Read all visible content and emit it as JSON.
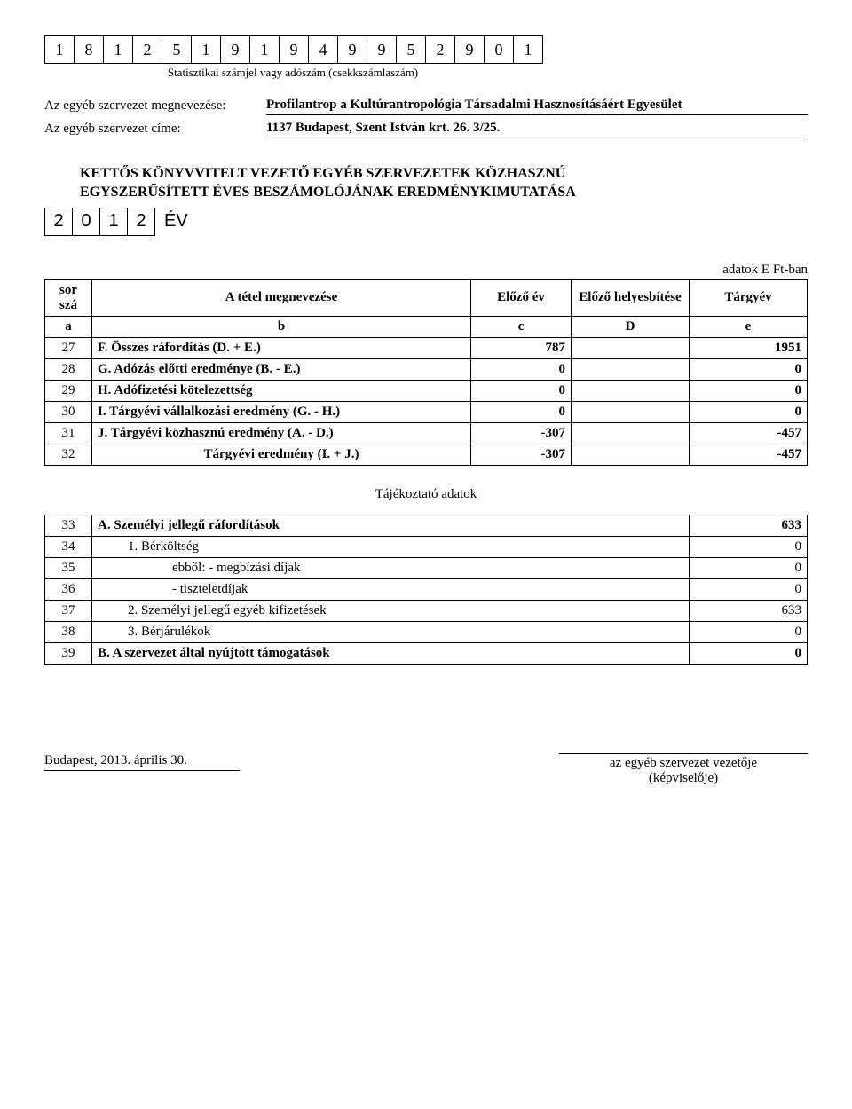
{
  "statNumber": [
    "1",
    "8",
    "1",
    "2",
    "5",
    "1",
    "9",
    "1",
    "9",
    "4",
    "9",
    "9",
    "5",
    "2",
    "9",
    "0",
    "1"
  ],
  "statLabel": "Statisztikai számjel vagy adószám (csekkszámlaszám)",
  "org": {
    "nameLabel": "Az egyéb szervezet megnevezése:",
    "nameValue": "Profilantrop a Kultúrantropológia Társadalmi Hasznosításáért Egyesület",
    "addrLabel": "Az egyéb szervezet címe:",
    "addrValue": "1137 Budapest, Szent István krt. 26. 3/25."
  },
  "title1": "KETTŐS KÖNYVVITELT VEZETŐ EGYÉB SZERVEZETEK KÖZHASZNÚ",
  "title2": "EGYSZERŰSÍTETT ÉVES BESZÁMOLÓJÁNAK EREDMÉNYKIMUTATÁSA",
  "yearDigits": [
    "2",
    "0",
    "1",
    "2"
  ],
  "yearLabel": "ÉV",
  "unitLabel": "adatok E Ft-ban",
  "mainHeaders": {
    "sor": "sor szá",
    "name": "A tétel megnevezése",
    "prev": "Előző év",
    "corr": "Előző helyesbítése",
    "curr": "Tárgyév"
  },
  "subHeaders": {
    "a": "a",
    "b": "b",
    "c": "c",
    "d": "D",
    "e": "e"
  },
  "mainRows": [
    {
      "sor": "27",
      "name": "F. Összes ráfordítás (D. + E.)",
      "prev": "787",
      "curr": "1951",
      "bold": true
    },
    {
      "sor": "28",
      "name": "G. Adózás előtti eredménye (B. - E.)",
      "prev": "0",
      "curr": "0",
      "bold": true
    },
    {
      "sor": "29",
      "name": "H. Adófizetési kötelezettség",
      "prev": "0",
      "curr": "0",
      "bold": true
    },
    {
      "sor": "30",
      "name": "I. Tárgyévi vállalkozási eredmény (G. - H.)",
      "prev": "0",
      "curr": "0",
      "bold": true
    },
    {
      "sor": "31",
      "name": "J. Tárgyévi közhasznú eredmény (A. - D.)",
      "prev": "-307",
      "curr": "-457",
      "bold": true
    },
    {
      "sor": "32",
      "name": "Tárgyévi eredmény (I. + J.)",
      "prev": "-307",
      "curr": "-457",
      "bold": true,
      "centerName": true
    }
  ],
  "sectionTitle": "Tájékoztató adatok",
  "suppRows": [
    {
      "sor": "33",
      "name": "A. Személyi jellegű ráfordítások",
      "val": "633",
      "bold": true,
      "indent": 0
    },
    {
      "sor": "34",
      "name": "1. Bérköltség",
      "val": "0",
      "bold": false,
      "indent": 1
    },
    {
      "sor": "35",
      "name": "ebből:  - megbízási díjak",
      "val": "0",
      "bold": false,
      "indent": 2
    },
    {
      "sor": "36",
      "name": "- tiszteletdíjak",
      "val": "0",
      "bold": false,
      "indent": 2
    },
    {
      "sor": "37",
      "name": "2. Személyi jellegű egyéb kifizetések",
      "val": "633",
      "bold": false,
      "indent": 1
    },
    {
      "sor": "38",
      "name": "3. Bérjárulékok",
      "val": "0",
      "bold": false,
      "indent": 1
    },
    {
      "sor": "39",
      "name": "B. A szervezet által nyújtott támogatások",
      "val": "0",
      "bold": true,
      "indent": 0
    }
  ],
  "footer": {
    "date": "Budapest, 2013. április 30.",
    "sig1": "az egyéb szervezet vezetője",
    "sig2": "(képviselője)"
  }
}
